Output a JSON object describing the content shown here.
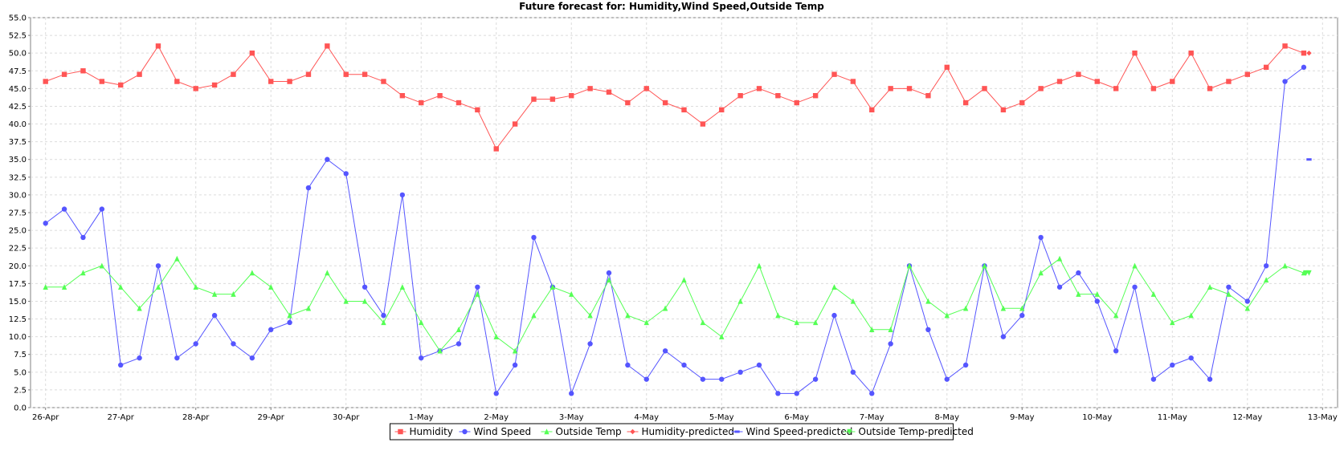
{
  "chart_data": {
    "type": "line",
    "title": "Future forecast for: Humidity,Wind Speed,Outside Temp",
    "xlabel": "",
    "ylabel": "",
    "ylim": [
      0,
      55
    ],
    "y_ticks": [
      "0.0",
      "2.5",
      "5.0",
      "7.5",
      "10.0",
      "12.5",
      "15.0",
      "17.5",
      "20.0",
      "22.5",
      "25.0",
      "27.5",
      "30.0",
      "32.5",
      "35.0",
      "37.5",
      "40.0",
      "42.5",
      "45.0",
      "47.5",
      "50.0",
      "52.5",
      "55.0"
    ],
    "x_ticks": [
      "26-Apr",
      "27-Apr",
      "28-Apr",
      "29-Apr",
      "30-Apr",
      "1-May",
      "2-May",
      "3-May",
      "4-May",
      "5-May",
      "6-May",
      "7-May",
      "8-May",
      "9-May",
      "10-May",
      "11-May",
      "12-May",
      "13-May"
    ],
    "xlim_days": [
      25.8,
      43.2
    ],
    "grid": true,
    "legend_position": "bottom",
    "legend": [
      "Humidity",
      "Wind Speed",
      "Outside Temp",
      "Humidity-predicted",
      "Wind Speed-predicted",
      "Outside Temp-predicted"
    ],
    "colors": {
      "humidity": "#ff5555",
      "wind": "#5555ff",
      "temp": "#55ff55",
      "hum_pred": "#ff5555",
      "wind_pred": "#5555ff",
      "temp_pred": "#55ff55",
      "grid": "#dcdcdc",
      "axis": "#808080"
    },
    "series": [
      {
        "name": "Humidity",
        "key": "humidity",
        "marker": "square",
        "x": [
          26.0,
          26.25,
          26.5,
          26.75,
          27.0,
          27.25,
          27.5,
          27.75,
          28.0,
          28.25,
          28.5,
          28.75,
          29.0,
          29.25,
          29.5,
          29.75,
          30.0,
          30.25,
          30.5,
          30.75,
          31.0,
          31.25,
          31.5,
          31.75,
          32.0,
          32.25,
          32.5,
          32.75,
          33.0,
          33.25,
          33.5,
          33.75,
          34.0,
          34.25,
          34.5,
          34.75,
          35.0,
          35.25,
          35.5,
          35.75,
          36.0,
          36.25,
          36.5,
          36.75,
          37.0,
          37.25,
          37.5,
          37.75,
          38.0,
          38.25,
          38.5,
          38.75,
          39.0,
          39.25,
          39.5,
          39.75,
          40.0,
          40.25,
          40.5,
          40.75,
          41.0,
          41.25,
          41.5,
          41.75,
          42.0,
          42.25,
          42.5,
          42.75
        ],
        "values": [
          46,
          47,
          47.5,
          46,
          45.5,
          47,
          51,
          46,
          45,
          45.5,
          47,
          50,
          46,
          46,
          47,
          51,
          47,
          47,
          46,
          44,
          43,
          44,
          43,
          42,
          36.5,
          40,
          43.5,
          43.5,
          44,
          45,
          44.5,
          43,
          45,
          43,
          42,
          40,
          42,
          44,
          45,
          44,
          43,
          44,
          47,
          46,
          42,
          45,
          45,
          44,
          48,
          43,
          45,
          42,
          43,
          45,
          46,
          47,
          46,
          45,
          50,
          45,
          46,
          50,
          45,
          46,
          47,
          48,
          51,
          50
        ]
      },
      {
        "name": "Wind Speed",
        "key": "wind",
        "marker": "circle",
        "x": [
          26.0,
          26.25,
          26.5,
          26.75,
          27.0,
          27.25,
          27.5,
          27.75,
          28.0,
          28.25,
          28.5,
          28.75,
          29.0,
          29.25,
          29.5,
          29.75,
          30.0,
          30.25,
          30.5,
          30.75,
          31.0,
          31.25,
          31.5,
          31.75,
          32.0,
          32.25,
          32.5,
          32.75,
          33.0,
          33.25,
          33.5,
          33.75,
          34.0,
          34.25,
          34.5,
          34.75,
          35.0,
          35.25,
          35.5,
          35.75,
          36.0,
          36.25,
          36.5,
          36.75,
          37.0,
          37.25,
          37.5,
          37.75,
          38.0,
          38.25,
          38.5,
          38.75,
          39.0,
          39.25,
          39.5,
          39.75,
          40.0,
          40.25,
          40.5,
          40.75,
          41.0,
          41.25,
          41.5,
          41.75,
          42.0,
          42.25,
          42.5,
          42.75
        ],
        "values": [
          26,
          28,
          24,
          28,
          6,
          7,
          20,
          7,
          9,
          13,
          9,
          7,
          11,
          12,
          31,
          35,
          33,
          17,
          13,
          30,
          7,
          8,
          9,
          17,
          2,
          6,
          24,
          17,
          2,
          9,
          19,
          6,
          4,
          8,
          6,
          4,
          4,
          5,
          6,
          2,
          2,
          4,
          13,
          5,
          2,
          9,
          20,
          11,
          4,
          6,
          20,
          10,
          13,
          24,
          17,
          19,
          15,
          8,
          17,
          4,
          6,
          7,
          4,
          17,
          15,
          20,
          46,
          48
        ]
      },
      {
        "name": "Outside Temp",
        "key": "temp",
        "marker": "triangle-up",
        "x": [
          26.0,
          26.25,
          26.5,
          26.75,
          27.0,
          27.25,
          27.5,
          27.75,
          28.0,
          28.25,
          28.5,
          28.75,
          29.0,
          29.25,
          29.5,
          29.75,
          30.0,
          30.25,
          30.5,
          30.75,
          31.0,
          31.25,
          31.5,
          31.75,
          32.0,
          32.25,
          32.5,
          32.75,
          33.0,
          33.25,
          33.5,
          33.75,
          34.0,
          34.25,
          34.5,
          34.75,
          35.0,
          35.25,
          35.5,
          35.75,
          36.0,
          36.25,
          36.5,
          36.75,
          37.0,
          37.25,
          37.5,
          37.75,
          38.0,
          38.25,
          38.5,
          38.75,
          39.0,
          39.25,
          39.5,
          39.75,
          40.0,
          40.25,
          40.5,
          40.75,
          41.0,
          41.25,
          41.5,
          41.75,
          42.0,
          42.25,
          42.5,
          42.75
        ],
        "values": [
          17,
          17,
          19,
          20,
          17,
          14,
          17,
          21,
          17,
          16,
          16,
          19,
          17,
          13,
          14,
          19,
          15,
          15,
          12,
          17,
          12,
          8,
          11,
          16,
          10,
          8,
          13,
          17,
          16,
          13,
          18,
          13,
          12,
          14,
          18,
          12,
          10,
          15,
          20,
          13,
          12,
          12,
          17,
          15,
          11,
          11,
          20,
          15,
          13,
          14,
          20,
          14,
          14,
          19,
          21,
          16,
          16,
          13,
          20,
          16,
          12,
          13,
          17,
          16,
          14,
          18,
          20,
          19
        ]
      },
      {
        "name": "Humidity-predicted",
        "key": "hum_pred",
        "marker": "diamond",
        "x": [
          42.82
        ],
        "values": [
          50
        ]
      },
      {
        "name": "Wind Speed-predicted",
        "key": "wind_pred",
        "marker": "hbar",
        "x": [
          42.82
        ],
        "values": [
          35
        ]
      },
      {
        "name": "Outside Temp-predicted",
        "key": "temp_pred",
        "marker": "triangle-down",
        "x": [
          42.78,
          42.82
        ],
        "values": [
          19,
          19
        ]
      }
    ]
  }
}
